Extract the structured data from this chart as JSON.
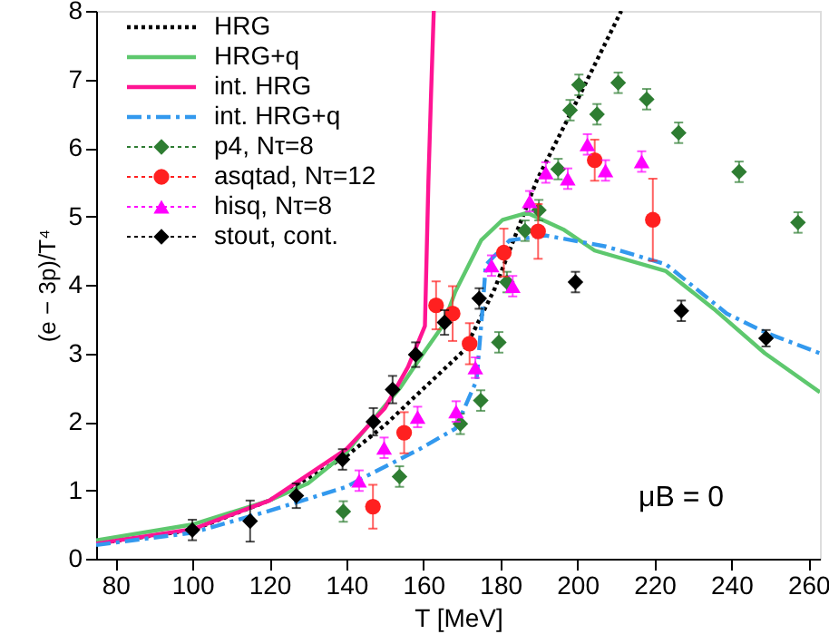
{
  "chart_data": {
    "type": "line",
    "xlabel": "T [MeV]",
    "ylabel": "(e − 3p)/T⁴",
    "xlim": [
      75,
      263
    ],
    "ylim": [
      0,
      8
    ],
    "xticks": [
      80,
      100,
      120,
      140,
      160,
      180,
      200,
      220,
      240,
      260
    ],
    "yticks": [
      0,
      1,
      2,
      3,
      4,
      5,
      6,
      7,
      8
    ],
    "grid": false,
    "legend": "top left",
    "annotations": [
      "μB = 0"
    ],
    "series": [
      {
        "name": "HRG",
        "line_style": "dotted",
        "color": "#000000",
        "x": [
          75,
          100,
          120,
          140,
          150,
          159,
          170.7,
          178.5,
          189.5,
          200,
          211.4
        ],
        "values": [
          0.22,
          0.42,
          0.85,
          1.5,
          1.95,
          2.43,
          3.05,
          3.94,
          5.53,
          6.7,
          8.0
        ]
      },
      {
        "name": "HRG+q",
        "line_style": "solid",
        "color": "#5ec86e",
        "x": [
          75,
          100,
          120,
          130,
          140,
          145,
          154,
          160,
          165,
          168.3,
          175,
          180.6,
          187,
          196.6,
          204.5,
          223,
          235.4,
          248.7,
          263
        ],
        "values": [
          0.27,
          0.5,
          0.85,
          1.1,
          1.55,
          1.9,
          2.5,
          3.0,
          3.4,
          3.9,
          4.65,
          4.95,
          5.05,
          4.8,
          4.5,
          4.2,
          3.65,
          3.0,
          2.43
        ]
      },
      {
        "name": "int. HRG",
        "line_style": "solid",
        "color": "#ff1493",
        "x": [
          75,
          100,
          120,
          140,
          150,
          156,
          160.4,
          161.3,
          162,
          162.7
        ],
        "values": [
          0.22,
          0.43,
          0.85,
          1.6,
          2.2,
          2.8,
          3.4,
          5.5,
          6.8,
          8.0
        ]
      },
      {
        "name": "int. HRG+q",
        "line_style": "dashed",
        "color": "#3399ee",
        "x": [
          75,
          100,
          120,
          140,
          145,
          159,
          168.3,
          173.8,
          175.4,
          176.2,
          182.4,
          191.8,
          207.4,
          223,
          238.8,
          249,
          263
        ],
        "values": [
          0.2,
          0.38,
          0.7,
          1.05,
          1.2,
          1.6,
          1.9,
          2.6,
          3.67,
          4.29,
          4.65,
          4.72,
          4.56,
          4.3,
          3.58,
          3.3,
          3.0
        ]
      },
      {
        "name": "p4, Nτ=8",
        "type": "scatter",
        "marker": "diamond",
        "color": "#2e7d32",
        "x": [
          139.2,
          153.8,
          169.6,
          174.9,
          179.6,
          181.7,
          186.4,
          190,
          195,
          198.1,
          200.4,
          205.1,
          210.6,
          218,
          226.3,
          242,
          257.3
        ],
        "values": [
          0.69,
          1.2,
          1.97,
          2.31,
          3.16,
          4.04,
          4.79,
          5.09,
          5.69,
          6.55,
          6.92,
          6.49,
          6.95,
          6.71,
          6.22,
          5.65,
          4.91
        ],
        "errors": [
          0.15,
          0.15,
          0.15,
          0.15,
          0.15,
          0.15,
          0.15,
          0.15,
          0.15,
          0.15,
          0.15,
          0.15,
          0.15,
          0.15,
          0.15,
          0.15,
          0.15
        ]
      },
      {
        "name": "asqtad, Nτ=12",
        "type": "scatter",
        "marker": "circle",
        "color": "#ff2020",
        "x": [
          146.9,
          155,
          163.3,
          167.6,
          172,
          180.9,
          189.8,
          204.5,
          219.6
        ],
        "values": [
          0.76,
          1.84,
          3.7,
          3.58,
          3.14,
          4.47,
          4.78,
          5.82,
          4.95
        ],
        "errors": [
          0.32,
          0.3,
          0.35,
          0.4,
          0.3,
          0.35,
          0.4,
          0.3,
          0.6
        ]
      },
      {
        "name": "hisq, Nτ=8",
        "type": "scatter",
        "marker": "triangle",
        "color": "#ff00ff",
        "x": [
          143.3,
          149.8,
          158.5,
          168.5,
          173.5,
          177.7,
          183.2,
          187.6,
          191.8,
          197.5,
          202.6,
          207.3,
          216.7
        ],
        "values": [
          1.14,
          1.62,
          2.07,
          2.15,
          2.79,
          4.28,
          3.98,
          5.22,
          5.64,
          5.55,
          6.05,
          5.67,
          5.8
        ],
        "errors": [
          0.15,
          0.15,
          0.15,
          0.15,
          0.15,
          0.15,
          0.15,
          0.15,
          0.15,
          0.15,
          0.15,
          0.15,
          0.15
        ]
      },
      {
        "name": "stout, cont.",
        "type": "scatter",
        "marker": "diamond",
        "color": "#000000",
        "x": [
          100,
          115,
          127,
          139,
          147,
          152,
          158,
          165.5,
          174.5,
          199.5,
          227,
          249
        ],
        "values": [
          0.42,
          0.55,
          0.92,
          1.45,
          2.0,
          2.47,
          2.98,
          3.45,
          3.8,
          4.04,
          3.62,
          3.22
        ],
        "errors": [
          0.15,
          0.3,
          0.18,
          0.15,
          0.2,
          0.2,
          0.18,
          0.18,
          0.15,
          0.15,
          0.15,
          0.12
        ]
      }
    ]
  }
}
